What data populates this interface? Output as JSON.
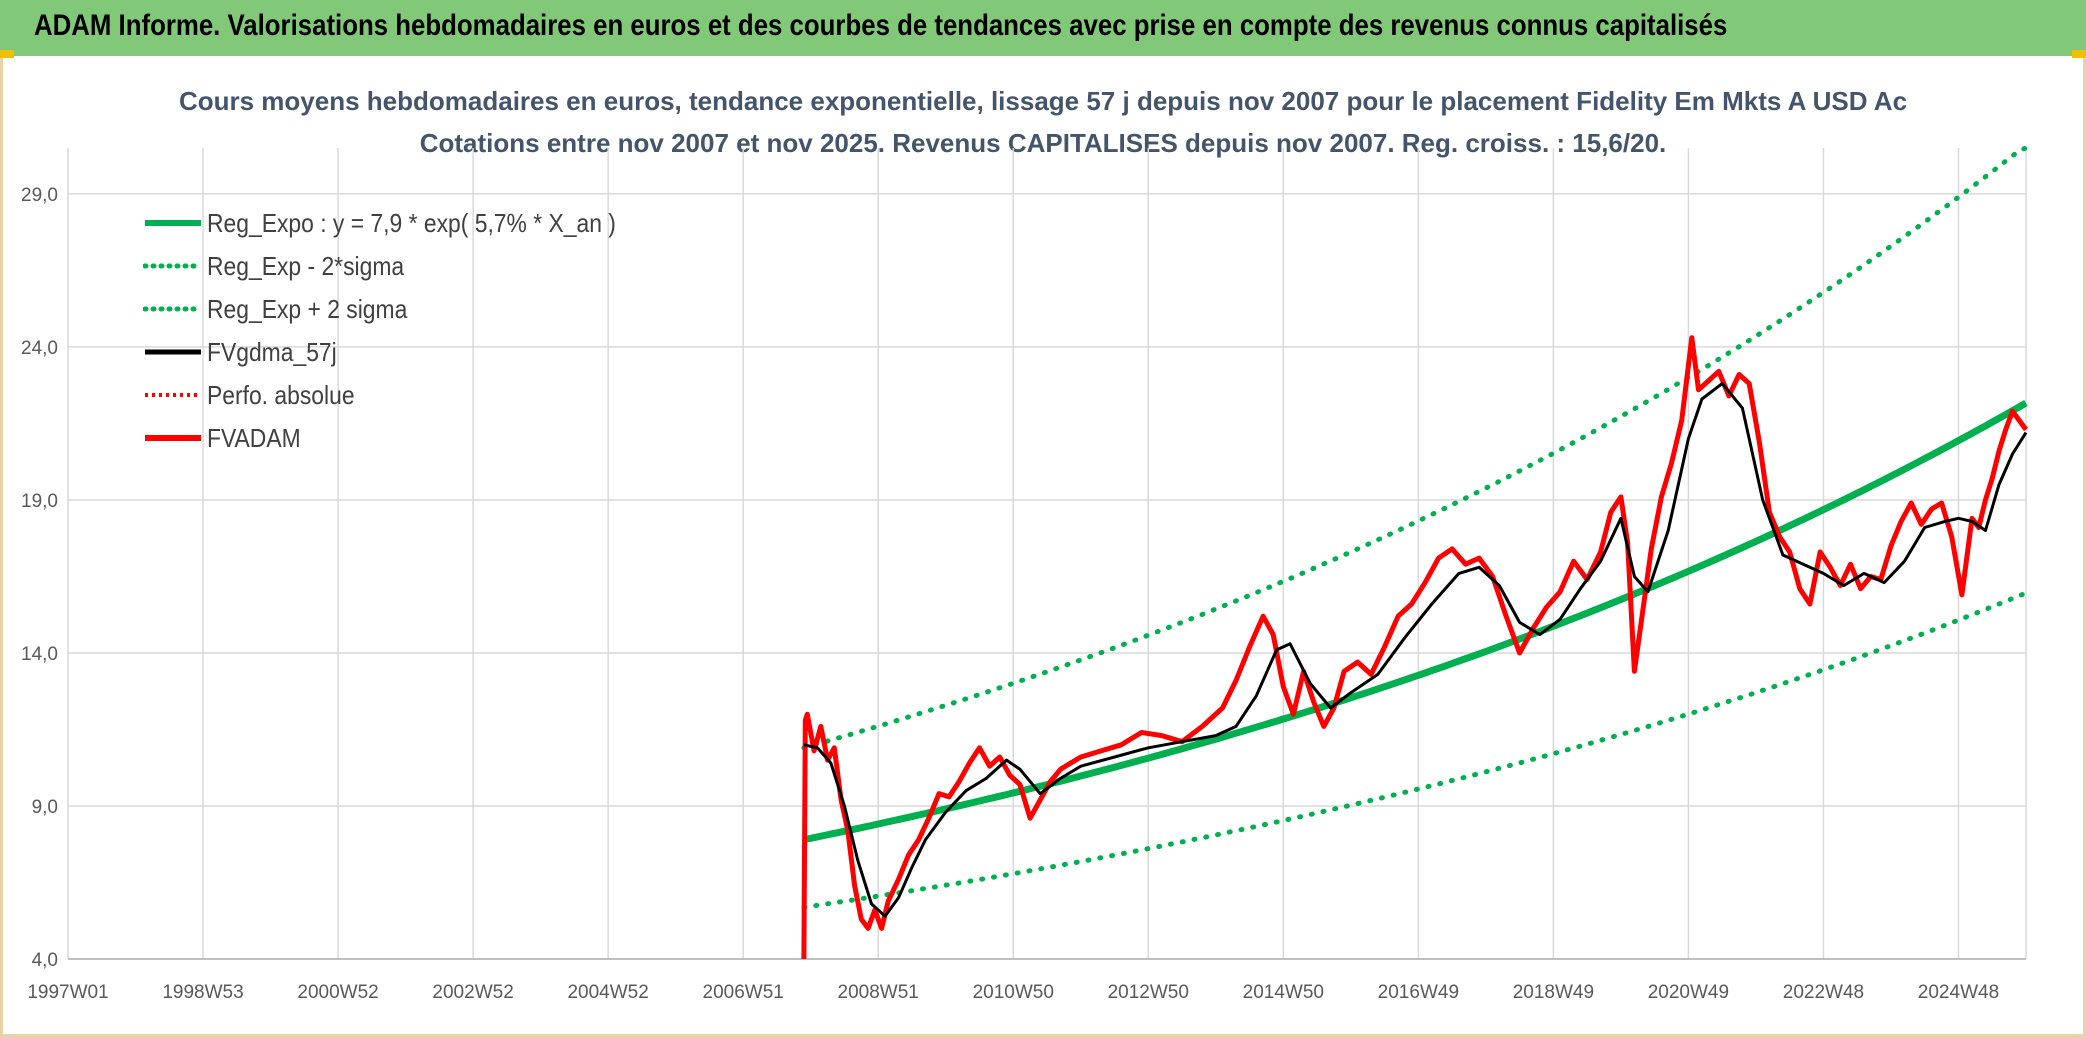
{
  "header": {
    "title": "ADAM Informe. Valorisations hebdomadaires en euros et des courbes de tendances avec prise en compte des revenus connus capitalisés"
  },
  "colors": {
    "header_bg": "#82c879",
    "green": "#00b050",
    "red": "#ff0000",
    "black": "#000000",
    "title_text": "#44546a",
    "grid": "#d9d9d9"
  },
  "chart_data": {
    "type": "line",
    "title": "Cours moyens hebdomadaires en euros, tendance exponentielle, lissage 57 j depuis nov 2007 pour le placement Fidelity Em Mkts A USD Ac",
    "subtitle": "Cotations entre nov 2007 et nov 2025. Revenus CAPITALISES depuis nov 2007. Reg. croiss. : 15,6/20.",
    "xlim": [
      1997.0,
      2026.0
    ],
    "ylim": [
      4.0,
      30.5
    ],
    "y_ticks": [
      "4,0",
      "9,0",
      "14,0",
      "19,0",
      "24,0",
      "29,0"
    ],
    "y_tick_values": [
      4,
      9,
      14,
      19,
      24,
      29
    ],
    "x_ticks": [
      "1997W01",
      "1998W53",
      "2000W52",
      "2002W52",
      "2004W52",
      "2006W51",
      "2008W51",
      "2010W50",
      "2012W50",
      "2014W50",
      "2016W49",
      "2018W49",
      "2020W49",
      "2022W48",
      "2024W48"
    ],
    "x_tick_values": [
      1997.0,
      1999.0,
      2001.0,
      2003.0,
      2005.0,
      2007.0,
      2009.0,
      2011.0,
      2013.0,
      2015.0,
      2017.0,
      2019.0,
      2021.0,
      2023.0,
      2025.0
    ],
    "grid": true,
    "legend_position": "top-left",
    "regression": {
      "a": 7.9,
      "rate": 0.057,
      "start": 2007.9,
      "end": 2026.0,
      "sigma_low_factor": 0.72,
      "sigma_high_factor": 1.38
    },
    "series": [
      {
        "name": "Reg_Expo : y = 7,9 * exp( 5,7% *  X_an )",
        "color": "#00b050",
        "style": "solid"
      },
      {
        "name": "Reg_Exp - 2*sigma",
        "color": "#00b050",
        "style": "dotted"
      },
      {
        "name": "Reg_Exp + 2 sigma",
        "color": "#00b050",
        "style": "dotted"
      },
      {
        "name": "FVgdma_57j",
        "color": "#000000",
        "style": "solid",
        "x": [
          2007.9,
          2008.1,
          2008.3,
          2008.5,
          2008.7,
          2008.9,
          2009.1,
          2009.3,
          2009.5,
          2009.7,
          2010.0,
          2010.3,
          2010.6,
          2010.9,
          2011.1,
          2011.4,
          2011.7,
          2012.0,
          2012.5,
          2013.0,
          2013.5,
          2014.0,
          2014.3,
          2014.6,
          2014.9,
          2015.1,
          2015.4,
          2015.7,
          2016.0,
          2016.4,
          2016.8,
          2017.2,
          2017.6,
          2017.9,
          2018.2,
          2018.5,
          2018.8,
          2019.1,
          2019.4,
          2019.7,
          2020.0,
          2020.2,
          2020.4,
          2020.7,
          2021.0,
          2021.2,
          2021.5,
          2021.8,
          2022.1,
          2022.4,
          2022.7,
          2023.0,
          2023.3,
          2023.6,
          2023.9,
          2024.2,
          2024.5,
          2024.8,
          2025.0,
          2025.2,
          2025.4,
          2025.6,
          2025.8,
          2026.0
        ],
        "y": [
          11.0,
          10.9,
          10.4,
          9.0,
          7.2,
          5.8,
          5.4,
          6.0,
          7.0,
          7.9,
          8.8,
          9.5,
          9.9,
          10.5,
          10.2,
          9.4,
          9.9,
          10.3,
          10.6,
          10.9,
          11.1,
          11.3,
          11.6,
          12.6,
          14.1,
          14.3,
          13.0,
          12.2,
          12.7,
          13.3,
          14.5,
          15.6,
          16.6,
          16.8,
          16.2,
          15.0,
          14.6,
          15.1,
          16.1,
          17.0,
          18.4,
          16.5,
          16.0,
          18.0,
          21.0,
          22.3,
          22.8,
          22.0,
          19.0,
          17.2,
          16.9,
          16.6,
          16.2,
          16.6,
          16.3,
          17.0,
          18.1,
          18.3,
          18.4,
          18.3,
          18.0,
          19.5,
          20.5,
          21.2
        ]
      },
      {
        "name": "Perfo. absolue",
        "color": "#ff0000",
        "style": "dotted"
      },
      {
        "name": "FVADAM",
        "color": "#ff0000",
        "style": "solid",
        "x": [
          2007.9,
          2007.92,
          2007.95,
          2008.05,
          2008.15,
          2008.25,
          2008.35,
          2008.45,
          2008.55,
          2008.65,
          2008.75,
          2008.85,
          2008.95,
          2009.05,
          2009.15,
          2009.3,
          2009.45,
          2009.6,
          2009.75,
          2009.9,
          2010.05,
          2010.2,
          2010.35,
          2010.5,
          2010.65,
          2010.8,
          2010.95,
          2011.1,
          2011.25,
          2011.4,
          2011.55,
          2011.7,
          2011.85,
          2012.0,
          2012.3,
          2012.6,
          2012.9,
          2013.2,
          2013.5,
          2013.8,
          2014.1,
          2014.3,
          2014.5,
          2014.7,
          2014.85,
          2015.0,
          2015.15,
          2015.3,
          2015.45,
          2015.6,
          2015.75,
          2015.9,
          2016.1,
          2016.3,
          2016.5,
          2016.7,
          2016.9,
          2017.1,
          2017.3,
          2017.5,
          2017.7,
          2017.9,
          2018.1,
          2018.3,
          2018.5,
          2018.7,
          2018.9,
          2019.1,
          2019.3,
          2019.5,
          2019.7,
          2019.85,
          2020.0,
          2020.1,
          2020.2,
          2020.3,
          2020.45,
          2020.6,
          2020.75,
          2020.9,
          2021.05,
          2021.15,
          2021.3,
          2021.45,
          2021.6,
          2021.75,
          2021.9,
          2022.05,
          2022.2,
          2022.35,
          2022.5,
          2022.65,
          2022.8,
          2022.95,
          2023.1,
          2023.25,
          2023.4,
          2023.55,
          2023.7,
          2023.85,
          2024.0,
          2024.15,
          2024.3,
          2024.45,
          2024.6,
          2024.75,
          2024.9,
          2025.05,
          2025.2,
          2025.3,
          2025.4,
          2025.5,
          2025.6,
          2025.7,
          2025.8,
          2025.9,
          2026.0
        ],
        "y": [
          4.0,
          11.8,
          12.0,
          10.8,
          11.6,
          10.5,
          10.9,
          9.2,
          8.2,
          6.4,
          5.3,
          5.0,
          5.6,
          5.0,
          5.9,
          6.6,
          7.4,
          7.9,
          8.6,
          9.4,
          9.3,
          9.8,
          10.4,
          10.9,
          10.3,
          10.6,
          10.0,
          9.7,
          8.6,
          9.2,
          9.8,
          10.2,
          10.4,
          10.6,
          10.8,
          11.0,
          11.4,
          11.3,
          11.1,
          11.6,
          12.2,
          13.1,
          14.2,
          15.2,
          14.6,
          12.9,
          12.0,
          13.4,
          12.4,
          11.6,
          12.2,
          13.4,
          13.7,
          13.3,
          14.2,
          15.2,
          15.6,
          16.3,
          17.1,
          17.4,
          16.9,
          17.1,
          16.5,
          15.2,
          14.0,
          14.8,
          15.5,
          16.0,
          17.0,
          16.4,
          17.3,
          18.6,
          19.1,
          17.6,
          13.4,
          15.0,
          17.4,
          19.1,
          20.2,
          21.6,
          24.3,
          22.6,
          22.9,
          23.2,
          22.4,
          23.1,
          22.8,
          20.9,
          18.6,
          17.8,
          17.3,
          16.1,
          15.6,
          17.3,
          16.8,
          16.2,
          16.9,
          16.1,
          16.5,
          16.4,
          17.5,
          18.3,
          18.9,
          18.2,
          18.7,
          18.9,
          17.8,
          15.9,
          18.4,
          18.1,
          19.0,
          19.7,
          20.6,
          21.3,
          21.9,
          21.6,
          21.3
        ]
      }
    ]
  }
}
